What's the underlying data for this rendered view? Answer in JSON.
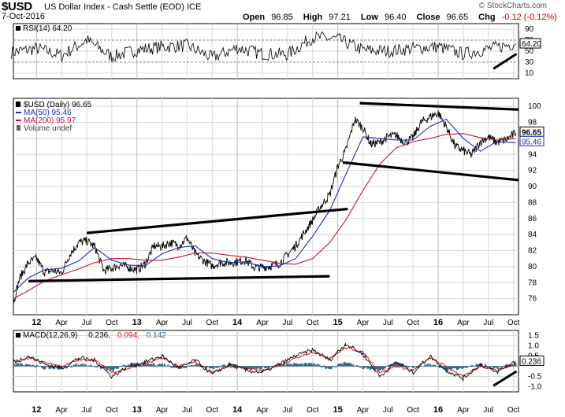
{
  "header": {
    "ticker": "$USD",
    "name": "US Dollar Index - Cash Settle (EOD) ICE",
    "date": "7-Oct-2016",
    "watermark": "© StockCharts.com",
    "open_label": "Open",
    "open": "96.85",
    "high_label": "High",
    "high": "97.21",
    "low_label": "Low",
    "low": "96.40",
    "close_label": "Close",
    "close": "96.65",
    "chg_label": "Chg",
    "chg": "-0.12 (-0.12%)"
  },
  "colors": {
    "price": "#000000",
    "ma50": "#1b2fa8",
    "ma200": "#c2143a",
    "rsi": "#000000",
    "rsi_fill": "#2f8a22",
    "macd": "#000000",
    "signal": "#d42020",
    "hist": "#2c6e8c",
    "grid": "#d8d8d8",
    "trendline": "#000000"
  },
  "chart_data": [
    {
      "type": "line",
      "name": "RSI",
      "legend": "RSI(14) 64.20",
      "ylim": [
        0,
        100
      ],
      "y_ticks": [
        10,
        30,
        50,
        70,
        90
      ],
      "reference_levels": [
        30,
        70
      ],
      "last_value_label": "64.20",
      "last_value": 64.2,
      "x": [
        2011.75,
        2012.0,
        2012.25,
        2012.5,
        2012.75,
        2013.0,
        2013.25,
        2013.5,
        2013.75,
        2014.0,
        2014.25,
        2014.5,
        2014.75,
        2015.0,
        2015.25,
        2015.5,
        2015.75,
        2016.0,
        2016.25,
        2016.5,
        2016.77
      ],
      "values": [
        48,
        55,
        42,
        70,
        40,
        52,
        58,
        60,
        38,
        56,
        45,
        44,
        75,
        72,
        52,
        50,
        55,
        58,
        45,
        54,
        64.2
      ],
      "trendlines": [
        {
          "x": [
            2016.55,
            2016.78
          ],
          "y": [
            18,
            45
          ]
        }
      ]
    },
    {
      "type": "line",
      "name": "Price",
      "legend": [
        "$USD (Daily) 96.65",
        "MA(50) 95.46",
        "MA(200) 95.97",
        "Volume undef"
      ],
      "ylim": [
        74,
        101
      ],
      "y_ticks": [
        76,
        78,
        80,
        82,
        84,
        86,
        88,
        90,
        92,
        94,
        96,
        98,
        100
      ],
      "last_value_labels": {
        "close": "96.65",
        "ma50": "95.46"
      },
      "x_ticks": [
        {
          "x": 2012.0,
          "label": "12",
          "major": true
        },
        {
          "x": 2012.25,
          "label": "Apr"
        },
        {
          "x": 2012.5,
          "label": "Jul"
        },
        {
          "x": 2012.75,
          "label": "Oct"
        },
        {
          "x": 2013.0,
          "label": "13",
          "major": true
        },
        {
          "x": 2013.25,
          "label": "Apr"
        },
        {
          "x": 2013.5,
          "label": "Jul"
        },
        {
          "x": 2013.75,
          "label": "Oct"
        },
        {
          "x": 2014.0,
          "label": "14",
          "major": true
        },
        {
          "x": 2014.25,
          "label": "Apr"
        },
        {
          "x": 2014.5,
          "label": "Jul"
        },
        {
          "x": 2014.75,
          "label": "Oct"
        },
        {
          "x": 2015.0,
          "label": "15",
          "major": true
        },
        {
          "x": 2015.25,
          "label": "Apr"
        },
        {
          "x": 2015.5,
          "label": "Jul"
        },
        {
          "x": 2015.75,
          "label": "Oct"
        },
        {
          "x": 2016.0,
          "label": "16",
          "major": true
        },
        {
          "x": 2016.25,
          "label": "Apr"
        },
        {
          "x": 2016.5,
          "label": "Jul"
        },
        {
          "x": 2016.75,
          "label": "Oct"
        }
      ],
      "xlim": [
        2011.77,
        2016.8
      ],
      "series": [
        {
          "name": "$USD (Daily)",
          "x": [
            2011.77,
            2011.83,
            2011.92,
            2012.0,
            2012.08,
            2012.17,
            2012.25,
            2012.33,
            2012.42,
            2012.5,
            2012.58,
            2012.67,
            2012.75,
            2012.83,
            2012.92,
            2013.0,
            2013.08,
            2013.17,
            2013.25,
            2013.33,
            2013.42,
            2013.5,
            2013.58,
            2013.67,
            2013.75,
            2013.83,
            2013.92,
            2014.0,
            2014.08,
            2014.17,
            2014.25,
            2014.33,
            2014.42,
            2014.5,
            2014.58,
            2014.67,
            2014.75,
            2014.83,
            2014.92,
            2015.0,
            2015.08,
            2015.17,
            2015.25,
            2015.33,
            2015.42,
            2015.5,
            2015.58,
            2015.67,
            2015.75,
            2015.83,
            2015.92,
            2016.0,
            2016.08,
            2016.17,
            2016.25,
            2016.33,
            2016.42,
            2016.5,
            2016.58,
            2016.67,
            2016.77
          ],
          "values": [
            75.5,
            78.5,
            80.5,
            81.0,
            79.3,
            79.5,
            79.2,
            81.5,
            83.0,
            83.2,
            82.5,
            79.5,
            79.8,
            80.2,
            79.9,
            79.6,
            80.3,
            82.6,
            82.5,
            83.0,
            82.6,
            83.6,
            81.6,
            80.7,
            80.1,
            80.5,
            80.5,
            80.6,
            80.8,
            79.9,
            79.9,
            80.1,
            80.4,
            81.5,
            82.6,
            84.3,
            85.8,
            87.5,
            89.0,
            92.5,
            94.5,
            98.4,
            97.3,
            95.3,
            95.5,
            96.2,
            96.4,
            95.5,
            96.1,
            98.0,
            98.7,
            99.2,
            97.5,
            95.0,
            94.5,
            93.9,
            95.6,
            96.2,
            95.5,
            95.8,
            96.65
          ]
        },
        {
          "name": "MA(50)",
          "x": [
            2011.77,
            2011.92,
            2012.08,
            2012.25,
            2012.42,
            2012.58,
            2012.75,
            2012.92,
            2013.08,
            2013.25,
            2013.42,
            2013.58,
            2013.75,
            2013.92,
            2014.08,
            2014.25,
            2014.42,
            2014.58,
            2014.75,
            2014.92,
            2015.08,
            2015.25,
            2015.42,
            2015.58,
            2015.75,
            2015.92,
            2016.08,
            2016.25,
            2016.42,
            2016.58,
            2016.77
          ],
          "values": [
            76.8,
            78.6,
            79.6,
            79.8,
            80.7,
            82.4,
            80.8,
            80.2,
            80.1,
            81.6,
            82.4,
            82.6,
            81.0,
            80.5,
            80.6,
            80.0,
            80.1,
            81.0,
            83.8,
            87.0,
            91.5,
            96.2,
            96.0,
            95.8,
            95.8,
            97.5,
            98.4,
            96.0,
            94.4,
            95.6,
            95.46
          ]
        },
        {
          "name": "MA(200)",
          "x": [
            2011.77,
            2011.92,
            2012.08,
            2012.25,
            2012.42,
            2012.58,
            2012.75,
            2012.92,
            2013.08,
            2013.25,
            2013.42,
            2013.58,
            2013.75,
            2013.92,
            2014.08,
            2014.25,
            2014.42,
            2014.58,
            2014.75,
            2014.92,
            2015.08,
            2015.25,
            2015.42,
            2015.58,
            2015.75,
            2015.92,
            2016.08,
            2016.25,
            2016.42,
            2016.58,
            2016.77
          ],
          "values": [
            76.0,
            77.0,
            78.2,
            79.0,
            79.7,
            80.5,
            81.0,
            81.0,
            80.8,
            80.8,
            81.2,
            81.7,
            81.7,
            81.4,
            81.2,
            80.8,
            80.4,
            80.3,
            81.0,
            83.0,
            85.8,
            89.5,
            92.8,
            94.8,
            95.6,
            96.0,
            96.5,
            96.6,
            96.1,
            95.8,
            95.97
          ]
        }
      ],
      "trendlines": [
        {
          "x": [
            2012.5,
            2015.1
          ],
          "y": [
            84.2,
            87.2
          ]
        },
        {
          "x": [
            2011.92,
            2014.92
          ],
          "y": [
            78.2,
            78.8
          ]
        },
        {
          "x": [
            2015.22,
            2016.8
          ],
          "y": [
            100.4,
            99.6
          ]
        },
        {
          "x": [
            2015.05,
            2016.8
          ],
          "y": [
            93.0,
            90.8
          ]
        }
      ]
    },
    {
      "type": "line",
      "name": "MACD",
      "legend": {
        "label": "MACD(12,26,9)",
        "macd": "0.236",
        "signal": "0.094",
        "hist": "0.142"
      },
      "ylim": [
        -1.25,
        1.75
      ],
      "y_ticks": [
        -1.0,
        -0.5,
        0.0,
        0.5,
        1.0,
        1.5
      ],
      "y_tick_labels": [
        "-1.0",
        "-0.5",
        "",
        "0.5",
        "1.0",
        "1.5"
      ],
      "last_value_label": "0.236",
      "series": [
        {
          "name": "MACD",
          "x": [
            2011.77,
            2011.92,
            2012.08,
            2012.25,
            2012.42,
            2012.58,
            2012.75,
            2012.92,
            2013.08,
            2013.25,
            2013.42,
            2013.58,
            2013.75,
            2013.92,
            2014.08,
            2014.25,
            2014.42,
            2014.58,
            2014.75,
            2014.92,
            2015.08,
            2015.25,
            2015.42,
            2015.58,
            2015.75,
            2015.92,
            2016.08,
            2016.25,
            2016.42,
            2016.58,
            2016.77
          ],
          "values": [
            0.2,
            0.5,
            0.1,
            -0.1,
            0.4,
            0.3,
            -0.5,
            0.0,
            0.2,
            0.5,
            -0.1,
            0.3,
            -0.4,
            0.1,
            -0.2,
            -0.3,
            0.1,
            0.5,
            0.8,
            0.3,
            1.1,
            0.6,
            -0.5,
            0.2,
            -0.3,
            0.5,
            -0.2,
            -0.6,
            0.1,
            -0.3,
            0.236
          ]
        },
        {
          "name": "Signal",
          "x": [
            2011.77,
            2011.92,
            2012.08,
            2012.25,
            2012.42,
            2012.58,
            2012.75,
            2012.92,
            2013.08,
            2013.25,
            2013.42,
            2013.58,
            2013.75,
            2013.92,
            2014.08,
            2014.25,
            2014.42,
            2014.58,
            2014.75,
            2014.92,
            2015.08,
            2015.25,
            2015.42,
            2015.58,
            2015.75,
            2015.92,
            2016.08,
            2016.25,
            2016.42,
            2016.58,
            2016.77
          ],
          "values": [
            0.1,
            0.4,
            0.2,
            0.0,
            0.3,
            0.3,
            -0.3,
            -0.1,
            0.1,
            0.4,
            0.0,
            0.2,
            -0.3,
            0.0,
            -0.1,
            -0.2,
            0.0,
            0.4,
            0.7,
            0.4,
            0.9,
            0.7,
            -0.3,
            0.0,
            -0.2,
            0.4,
            0.0,
            -0.5,
            0.0,
            -0.2,
            0.094
          ]
        }
      ],
      "histogram": {
        "name": "Histogram",
        "x": [
          2011.77,
          2011.92,
          2012.08,
          2012.25,
          2012.42,
          2012.58,
          2012.75,
          2012.92,
          2013.08,
          2013.25,
          2013.42,
          2013.58,
          2013.75,
          2013.92,
          2014.08,
          2014.25,
          2014.42,
          2014.58,
          2014.75,
          2014.92,
          2015.08,
          2015.25,
          2015.42,
          2015.58,
          2015.75,
          2015.92,
          2016.08,
          2016.25,
          2016.42,
          2016.58,
          2016.77
        ],
        "values": [
          0.1,
          0.1,
          -0.1,
          -0.1,
          0.1,
          0.0,
          -0.2,
          0.1,
          0.1,
          0.1,
          -0.1,
          0.1,
          -0.1,
          0.1,
          -0.1,
          -0.1,
          0.1,
          0.1,
          0.1,
          -0.1,
          0.2,
          -0.1,
          -0.2,
          0.2,
          -0.1,
          0.1,
          -0.2,
          -0.1,
          0.1,
          -0.1,
          0.142
        ]
      },
      "trendlines": [
        {
          "x": [
            2016.55,
            2016.78
          ],
          "y": [
            -0.95,
            -0.25
          ]
        }
      ]
    }
  ]
}
